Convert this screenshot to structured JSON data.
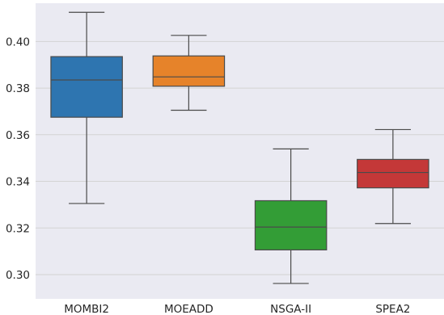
{
  "chart_data": {
    "type": "boxplot",
    "title": "",
    "xlabel": "",
    "ylabel": "",
    "categories": [
      "MOMBI2",
      "MOEADD",
      "NSGA-II",
      "SPEA2"
    ],
    "yticks": [
      "0.30",
      "0.32",
      "0.34",
      "0.36",
      "0.38",
      "0.40"
    ],
    "ylim": [
      0.2896,
      0.4164
    ],
    "grid": true,
    "colors": {
      "background": "#EAEAF2",
      "grid": "#D3D3D3",
      "line": "#4A4A4A",
      "MOMBI2": "#2E75B0",
      "MOEADD": "#E6832A",
      "NSGA-II": "#339D36",
      "SPEA2": "#C43838"
    },
    "boxes": [
      {
        "name": "MOMBI2",
        "whislo": 0.3305,
        "q1": 0.3675,
        "med": 0.3835,
        "q3": 0.3935,
        "whishi": 0.4125
      },
      {
        "name": "MOEADD",
        "whislo": 0.3705,
        "q1": 0.3808,
        "med": 0.3848,
        "q3": 0.3938,
        "whishi": 0.4026
      },
      {
        "name": "NSGA-II",
        "whislo": 0.2962,
        "q1": 0.3106,
        "med": 0.3204,
        "q3": 0.3317,
        "whishi": 0.3539
      },
      {
        "name": "SPEA2",
        "whislo": 0.3219,
        "q1": 0.3372,
        "med": 0.3438,
        "q3": 0.3494,
        "whishi": 0.3622
      }
    ]
  }
}
